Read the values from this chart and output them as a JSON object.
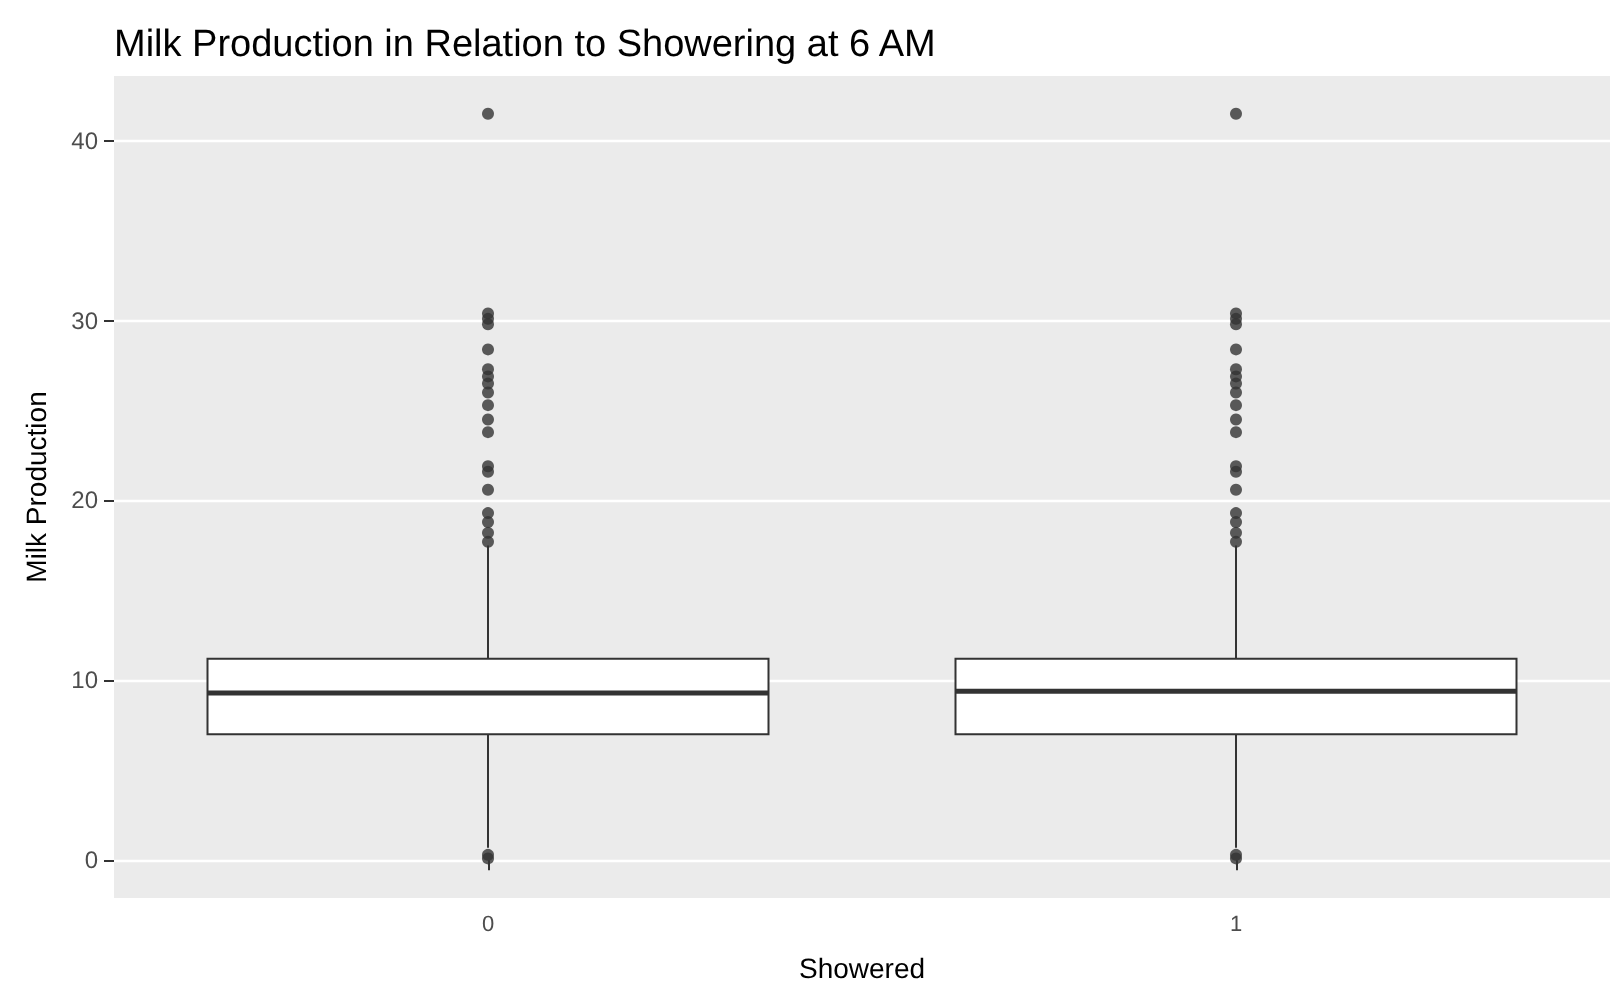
{
  "chart_data": {
    "type": "box",
    "title": "Milk Production in Relation to Showering at 6 AM",
    "xlabel": "Showered",
    "ylabel": "Milk Production",
    "categories": [
      "0",
      "1"
    ],
    "boxes": [
      {
        "low": 0.7,
        "q1": 7.0,
        "median": 9.3,
        "q3": 11.2,
        "high": 17.5,
        "outliers": [
          0.1,
          0.3,
          17.7,
          18.2,
          18.8,
          19.3,
          20.6,
          21.6,
          21.9,
          23.8,
          24.5,
          25.3,
          26.0,
          26.5,
          26.9,
          27.3,
          28.4,
          29.8,
          30.1,
          30.4,
          41.5
        ]
      },
      {
        "low": 0.7,
        "q1": 7.0,
        "median": 9.4,
        "q3": 11.2,
        "high": 17.5,
        "outliers": [
          0.1,
          0.3,
          17.7,
          18.2,
          18.8,
          19.3,
          20.6,
          21.6,
          21.9,
          23.8,
          24.5,
          25.3,
          26.0,
          26.5,
          26.9,
          27.3,
          28.4,
          29.8,
          30.1,
          30.4,
          41.5
        ]
      }
    ],
    "color": "#333333",
    "ylim": [
      -2.1,
      43.6
    ],
    "yticks": [
      0,
      10,
      20,
      30,
      40
    ],
    "grid": "y"
  }
}
